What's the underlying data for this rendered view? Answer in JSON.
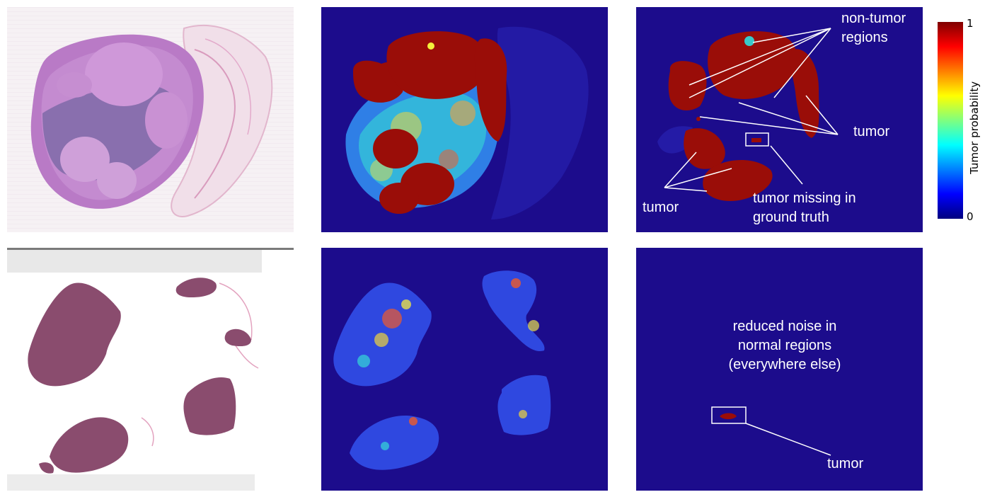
{
  "figure": {
    "rows": [
      {
        "name": "top",
        "panels": [
          "whole-slide-image",
          "baseline-heatmap",
          "improved-heatmap"
        ],
        "annotations": {
          "non_tumor": "non-tumor\nregions",
          "tumor_right": "tumor",
          "tumor_left": "tumor",
          "missing": "tumor missing in\nground truth"
        }
      },
      {
        "name": "bottom",
        "panels": [
          "whole-slide-image",
          "baseline-heatmap",
          "improved-heatmap"
        ],
        "annotations": {
          "noise": "reduced noise in\nnormal regions\n(everywhere else)",
          "tumor": "tumor"
        }
      }
    ]
  },
  "colorbar": {
    "title": "Tumor probability",
    "max_label": "1",
    "min_label": "0",
    "colors": [
      "#7f0000",
      "#ff0000",
      "#ff7f00",
      "#ffff00",
      "#7fff7f",
      "#00ffff",
      "#007fff",
      "#0000ff",
      "#00007f"
    ]
  },
  "colors": {
    "heatmap_background": "#1c0c8c",
    "tumor_high": "#9a0d08",
    "annotation": "#ffffff"
  }
}
